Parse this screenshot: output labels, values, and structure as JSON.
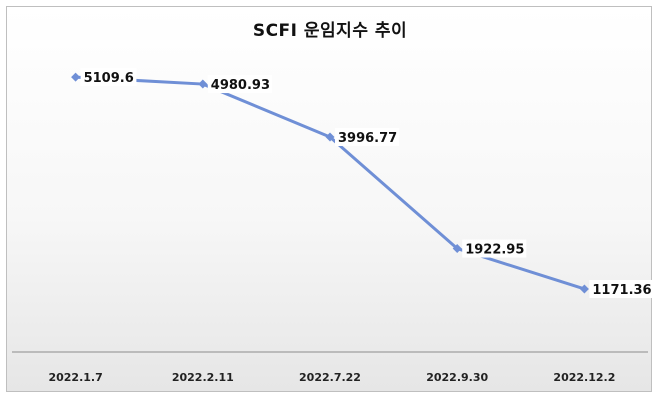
{
  "chart_data": {
    "type": "line",
    "title": "SCFI 운임지수 추이",
    "categories": [
      "2022.1.7",
      "2022.2.11",
      "2022.7.22",
      "2022.9.30",
      "2022.12.2"
    ],
    "series": [
      {
        "values": [
          5109.6,
          4980.93,
          3996.77,
          1922.95,
          1171.36
        ]
      }
    ],
    "data_labels": [
      "5109.6",
      "4980.93",
      "3996.77",
      "1922.95",
      "1171.36"
    ],
    "ylim": [
      0,
      5800
    ],
    "grid": false,
    "legend": "none",
    "colors": {
      "line": "#6f8fd6",
      "marker": "#6f8fd6"
    }
  }
}
